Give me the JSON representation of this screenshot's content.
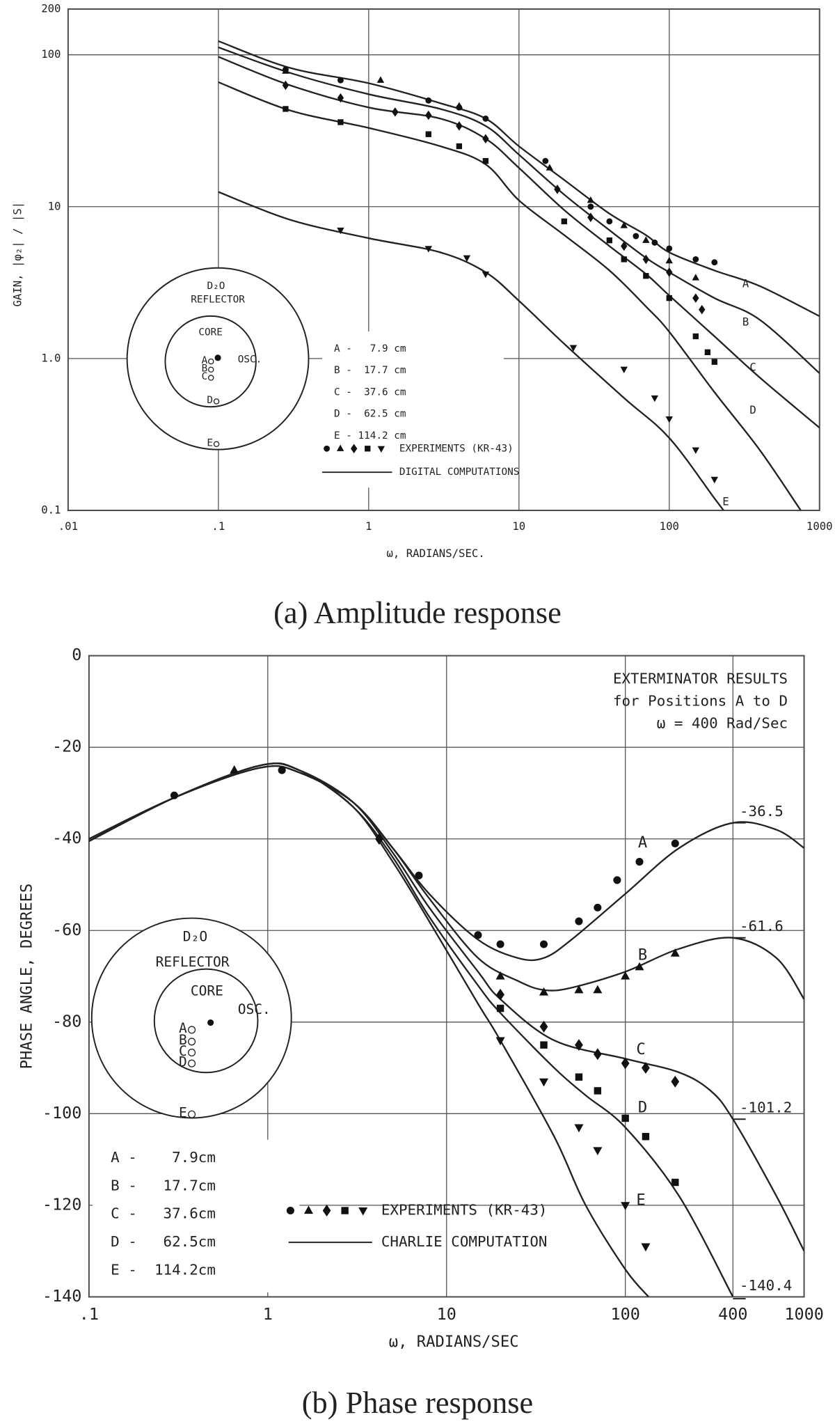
{
  "chart_data": [
    {
      "type": "line",
      "title": "(a) Amplitude response",
      "xlabel": "ω, RADIANS/SEC.",
      "ylabel": "GAIN, |φ₂| / |S|",
      "xscale": "log",
      "yscale": "log",
      "grid": true,
      "xlim": [
        0.01,
        1000
      ],
      "ylim": [
        0.1,
        200
      ],
      "xticks": [
        {
          "value": 0.01,
          "label": ".01"
        },
        {
          "value": 0.1,
          "label": ".1"
        },
        1,
        10,
        100,
        1000
      ],
      "yticks": [
        0.1,
        {
          "value": 1,
          "label": "1.0"
        },
        10,
        100,
        200
      ],
      "series": [
        {
          "name": "A",
          "color": "#222222",
          "x": [
            0.1,
            0.3,
            1,
            3,
            6,
            10,
            20,
            40,
            70,
            100,
            200,
            400,
            1000
          ],
          "values": [
            123,
            82,
            65,
            48,
            38,
            25,
            15,
            9,
            6.5,
            5,
            3.8,
            3.0,
            1.9
          ]
        },
        {
          "name": "B",
          "color": "#222222",
          "x": [
            0.1,
            0.3,
            1,
            3,
            6,
            10,
            20,
            40,
            70,
            100,
            200,
            400,
            1000
          ],
          "values": [
            112,
            76,
            55,
            44,
            34,
            22,
            12,
            7,
            4.6,
            3.7,
            2.5,
            1.8,
            0.8
          ]
        },
        {
          "name": "C",
          "color": "#222222",
          "x": [
            0.1,
            0.3,
            1,
            3,
            6,
            10,
            20,
            40,
            70,
            100,
            200,
            400,
            1000
          ],
          "values": [
            97,
            63,
            45,
            38,
            28,
            18,
            9.5,
            5.5,
            3.6,
            2.6,
            1.4,
            0.75,
            0.35
          ]
        },
        {
          "name": "D",
          "color": "#222222",
          "x": [
            0.1,
            0.3,
            1,
            3,
            6,
            10,
            20,
            40,
            70,
            100,
            200,
            400,
            750
          ],
          "values": [
            66,
            43,
            33,
            25,
            19,
            11,
            6.5,
            3.8,
            2.2,
            1.5,
            0.6,
            0.25,
            0.1
          ]
        },
        {
          "name": "E",
          "color": "#222222",
          "x": [
            0.1,
            0.3,
            1,
            3,
            6,
            10,
            20,
            50,
            100,
            200,
            230
          ],
          "values": [
            12.5,
            8.2,
            6.2,
            5,
            3.7,
            2.4,
            1.25,
            0.55,
            0.3,
            0.12,
            0.1
          ]
        }
      ],
      "experiments": {
        "label": "EXPERIMENTS (KR-43)",
        "series": [
          {
            "marker": "circle",
            "x": [
              0.28,
              0.65,
              2.5,
              4,
              6,
              15,
              30,
              40,
              60,
              80,
              100,
              150,
              200
            ],
            "values": [
              80,
              68,
              50,
              45,
              38,
              20,
              10,
              8,
              6.4,
              5.8,
              5.3,
              4.5,
              4.3
            ]
          },
          {
            "marker": "triangle",
            "x": [
              0.28,
              1.2,
              4,
              16,
              30,
              50,
              70,
              100,
              150
            ],
            "values": [
              78,
              68,
              46,
              18,
              11,
              7.5,
              6,
              4.4,
              3.4
            ]
          },
          {
            "marker": "diamond",
            "x": [
              0.28,
              0.65,
              1.5,
              2.5,
              4,
              6,
              18,
              30,
              50,
              70,
              100,
              150,
              165
            ],
            "values": [
              63,
              52,
              42,
              40,
              34,
              28,
              13,
              8.5,
              5.5,
              4.5,
              3.7,
              2.5,
              2.1
            ]
          },
          {
            "marker": "square",
            "x": [
              0.28,
              0.65,
              2.5,
              4,
              6,
              20,
              40,
              50,
              70,
              100,
              150,
              180,
              200
            ],
            "values": [
              44,
              36,
              30,
              25,
              20,
              8,
              6,
              4.5,
              3.5,
              2.5,
              1.4,
              1.1,
              0.95
            ]
          },
          {
            "marker": "triangle-down",
            "x": [
              0.65,
              2.5,
              4.5,
              6,
              23,
              50,
              80,
              100,
              150,
              200
            ],
            "values": [
              7,
              5.3,
              4.6,
              3.6,
              1.18,
              0.85,
              0.55,
              0.4,
              0.25,
              0.16
            ]
          }
        ]
      },
      "computation_label": "DIGITAL COMPUTATIONS",
      "legend_entries": [
        "A -   7.9 cm",
        "B -  17.7 cm",
        "C -  37.6 cm",
        "D -  62.5 cm",
        "E - 114.2 cm"
      ],
      "inset_labels": [
        "D₂O",
        "REFLECTOR",
        "CORE",
        "OSC.",
        "A",
        "B",
        "C",
        "D",
        "E"
      ]
    },
    {
      "type": "line",
      "title": "(b) Phase response",
      "xlabel": "ω, RADIANS/SEC",
      "ylabel": "PHASE ANGLE, DEGREES",
      "xscale": "log",
      "yscale": "linear",
      "grid": true,
      "xlim": [
        0.1,
        1000
      ],
      "ylim": [
        -140,
        0
      ],
      "xticks": [
        {
          "value": 0.1,
          "label": ".1"
        },
        1,
        10,
        100,
        400,
        1000
      ],
      "yticks": [
        0,
        -20,
        -40,
        -60,
        -80,
        -100,
        -120,
        -140
      ],
      "series": [
        {
          "name": "A",
          "color": "#222222",
          "x": [
            0.1,
            0.3,
            0.9,
            1.5,
            3,
            5,
            8,
            15,
            25,
            35,
            50,
            100,
            200,
            400,
            700,
            1000
          ],
          "values": [
            -40,
            -31,
            -24.5,
            -25.5,
            -32,
            -42,
            -52,
            -62,
            -66,
            -66,
            -62,
            -52,
            -42,
            -36.5,
            -38,
            -42
          ]
        },
        {
          "name": "B",
          "color": "#222222",
          "x": [
            0.1,
            0.3,
            0.9,
            1.5,
            3,
            5,
            8,
            15,
            25,
            35,
            50,
            100,
            200,
            400,
            700,
            1000
          ],
          "values": [
            -40,
            -31,
            -24.5,
            -25.5,
            -32,
            -42,
            -53,
            -66,
            -71,
            -73,
            -72.5,
            -69,
            -64,
            -61.6,
            -66,
            -75
          ]
        },
        {
          "name": "C",
          "color": "#222222",
          "x": [
            0.1,
            0.3,
            0.9,
            1.5,
            3,
            5,
            8,
            15,
            20,
            40,
            100,
            200,
            300,
            400,
            700,
            1000
          ],
          "values": [
            -40.5,
            -31,
            -24,
            -25,
            -32,
            -43,
            -55,
            -69,
            -75,
            -84,
            -88,
            -91,
            -95,
            -101.2,
            -118,
            -130
          ]
        },
        {
          "name": "D",
          "color": "#222222",
          "x": [
            0.1,
            0.3,
            0.9,
            1.5,
            3,
            5,
            8,
            15,
            20,
            40,
            60,
            100,
            200,
            400
          ],
          "values": [
            -40.5,
            -31,
            -24,
            -25,
            -33,
            -44,
            -57,
            -72,
            -78,
            -90,
            -96,
            -103,
            -118,
            -140
          ]
        },
        {
          "name": "E",
          "color": "#222222",
          "x": [
            0.1,
            0.3,
            0.9,
            1.5,
            3,
            5,
            8,
            15,
            20,
            40,
            60,
            100,
            135
          ],
          "values": [
            -40.5,
            -31,
            -24,
            -25,
            -33,
            -45,
            -58,
            -76,
            -84,
            -105,
            -120,
            -134,
            -140
          ]
        }
      ],
      "experiments": {
        "label": "EXPERIMENTS (KR-43)",
        "series": [
          {
            "marker": "circle",
            "x": [
              0.3,
              1.2,
              7,
              15,
              20,
              35,
              55,
              70,
              90,
              120,
              190
            ],
            "values": [
              -30.5,
              -25,
              -48,
              -61,
              -63,
              -63,
              -58,
              -55,
              -49,
              -45,
              -41
            ]
          },
          {
            "marker": "triangle",
            "x": [
              0.65,
              20,
              35,
              55,
              70,
              100,
              120,
              190
            ],
            "values": [
              -25,
              -70,
              -73.5,
              -73,
              -73,
              -70,
              -68,
              -65
            ]
          },
          {
            "marker": "diamond",
            "x": [
              4.2,
              20,
              35,
              55,
              70,
              100,
              130,
              190
            ],
            "values": [
              -40,
              -74,
              -81,
              -85,
              -87,
              -89,
              -90,
              -93
            ]
          },
          {
            "marker": "square",
            "x": [
              20,
              35,
              55,
              70,
              100,
              130,
              190
            ],
            "values": [
              -77,
              -85,
              -92,
              -95,
              -101,
              -105,
              -115
            ]
          },
          {
            "marker": "triangle-down",
            "x": [
              20,
              35,
              55,
              70,
              100,
              130
            ],
            "values": [
              -84,
              -93,
              -103,
              -108,
              -120,
              -129
            ]
          }
        ]
      },
      "computation_label": "CHARLIE COMPUTATION",
      "legend_entries": [
        "A -    7.9cm",
        "B -   17.7cm",
        "C -   37.6cm",
        "D -   62.5cm",
        "E -  114.2cm"
      ],
      "inset_labels": [
        "D₂O",
        "REFLECTOR",
        "CORE",
        "OSC.",
        "A",
        "B",
        "C",
        "D",
        "E"
      ],
      "note": [
        "EXTERMINATOR RESULTS",
        "for Positions A to D",
        "ω = 400 Rad/Sec"
      ],
      "exterminator": {
        "x": 400,
        "values": [
          -36.5,
          -61.6,
          -101.2,
          -140.4
        ]
      }
    }
  ]
}
